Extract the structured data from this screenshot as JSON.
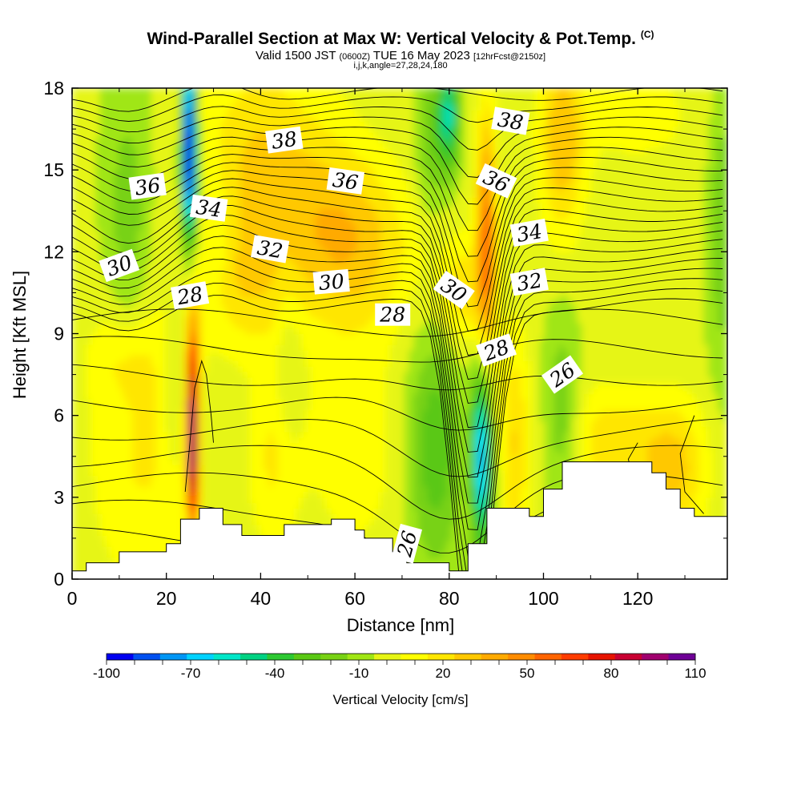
{
  "title": {
    "main": "Wind-Parallel Section at Max W: Vertical Velocity & Pot.Temp.",
    "copyright": "(C)",
    "valid_prefix": "Valid 1500 JST",
    "valid_utc": "(0600Z)",
    "valid_date": "TUE 16 May 2023",
    "forecast": "[12hrFcst@2150z]",
    "indices": "i,j,k,angle=27,28,24,180"
  },
  "chart_data": {
    "type": "heatmap",
    "xlabel": "Distance [nm]",
    "ylabel": "Height [Kft MSL]",
    "xlim": [
      0,
      139
    ],
    "ylim": [
      0,
      18
    ],
    "x_ticks": [
      0,
      20,
      40,
      60,
      80,
      100,
      120
    ],
    "y_ticks": [
      0,
      3,
      6,
      9,
      12,
      15,
      18
    ],
    "colorbar": {
      "label": "Vertical Velocity [cm/s]",
      "levels": [
        -100,
        -90,
        -80,
        -70,
        -60,
        -50,
        -40,
        -30,
        -20,
        -10,
        0,
        10,
        20,
        30,
        40,
        50,
        60,
        70,
        80,
        90,
        100,
        110
      ],
      "tick_labels": [
        "-100",
        "-70",
        "-40",
        "-10",
        "20",
        "50",
        "80",
        "110"
      ],
      "colors": [
        "#0000f0",
        "#0050f0",
        "#0096f5",
        "#00d2ff",
        "#00e6c8",
        "#00d282",
        "#2dc832",
        "#5ac814",
        "#78d214",
        "#a0e614",
        "#e6f514",
        "#ffff00",
        "#ffe600",
        "#ffc800",
        "#ffaa00",
        "#ff8c00",
        "#ff6400",
        "#ff3c00",
        "#e61400",
        "#c80032",
        "#a0006e",
        "#6e0096"
      ]
    },
    "theta_contour_labels": [
      {
        "label": "38",
        "x": 45,
        "y": 16.1
      },
      {
        "label": "38",
        "x": 93,
        "y": 16.8
      },
      {
        "label": "36",
        "x": 16,
        "y": 14.4
      },
      {
        "label": "36",
        "x": 58,
        "y": 14.6
      },
      {
        "label": "36",
        "x": 90,
        "y": 14.6
      },
      {
        "label": "34",
        "x": 29,
        "y": 13.6
      },
      {
        "label": "34",
        "x": 97,
        "y": 12.7
      },
      {
        "label": "32",
        "x": 42,
        "y": 12.1
      },
      {
        "label": "32",
        "x": 97,
        "y": 10.9
      },
      {
        "label": "30",
        "x": 10,
        "y": 11.5
      },
      {
        "label": "30",
        "x": 55,
        "y": 10.9
      },
      {
        "label": "30",
        "x": 81,
        "y": 10.6
      },
      {
        "label": "28",
        "x": 25,
        "y": 10.4
      },
      {
        "label": "28",
        "x": 68,
        "y": 9.7
      },
      {
        "label": "28",
        "x": 90,
        "y": 8.4
      },
      {
        "label": "26",
        "x": 104,
        "y": 7.5
      },
      {
        "label": "26",
        "x": 71,
        "y": 1.3
      }
    ],
    "terrain_profile": {
      "x": [
        0,
        3,
        3,
        10,
        10,
        20,
        20,
        23,
        23,
        27,
        27,
        32,
        32,
        36,
        36,
        45,
        45,
        55,
        55,
        60,
        60,
        62,
        62,
        68,
        68,
        71,
        71,
        80,
        80,
        84,
        84,
        88,
        88,
        97,
        97,
        100,
        100,
        104,
        104,
        123,
        123,
        126,
        126,
        129,
        129,
        132,
        132,
        139
      ],
      "y": [
        0.3,
        0.3,
        0.6,
        0.6,
        1.0,
        1.0,
        1.3,
        1.3,
        2.2,
        2.2,
        2.6,
        2.6,
        2.0,
        2.0,
        1.6,
        1.6,
        2.0,
        2.0,
        2.2,
        2.2,
        1.8,
        1.8,
        1.5,
        1.5,
        1.0,
        1.0,
        0.6,
        0.6,
        0.3,
        0.3,
        1.3,
        1.3,
        2.6,
        2.6,
        2.3,
        2.3,
        3.3,
        3.3,
        4.3,
        4.3,
        3.9,
        3.9,
        3.3,
        3.3,
        2.6,
        2.6,
        2.3,
        2.3
      ]
    }
  }
}
